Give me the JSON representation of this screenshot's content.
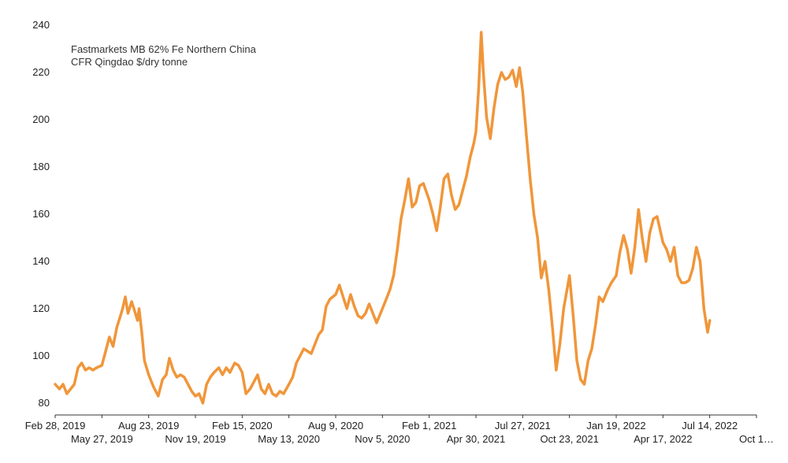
{
  "chart_data": {
    "type": "line",
    "title": "",
    "xlabel": "",
    "ylabel": "",
    "annotation": [
      "Fastmarkets MB 62% Fe Northern China",
      "CFR Qingdao $/dry tonne"
    ],
    "ylim": [
      80,
      240
    ],
    "yticks": [
      80,
      100,
      120,
      140,
      160,
      180,
      200,
      220,
      240
    ],
    "grid": false,
    "color": "#F0963A",
    "xtick_labels": [
      {
        "label": "Feb 28, 2019",
        "date": "2019-02-28",
        "row": 1
      },
      {
        "label": "May 27, 2019",
        "date": "2019-05-27",
        "row": 2
      },
      {
        "label": "Aug 23, 2019",
        "date": "2019-08-23",
        "row": 1
      },
      {
        "label": "Nov 19, 2019",
        "date": "2019-11-19",
        "row": 2
      },
      {
        "label": "Feb 15, 2020",
        "date": "2020-02-15",
        "row": 1
      },
      {
        "label": "May 13, 2020",
        "date": "2020-05-13",
        "row": 2
      },
      {
        "label": "Aug 9, 2020",
        "date": "2020-08-09",
        "row": 1
      },
      {
        "label": "Nov 5, 2020",
        "date": "2020-11-05",
        "row": 2
      },
      {
        "label": "Feb 1, 2021",
        "date": "2021-02-01",
        "row": 1
      },
      {
        "label": "Apr 30, 2021",
        "date": "2021-04-30",
        "row": 2
      },
      {
        "label": "Jul 27, 2021",
        "date": "2021-07-27",
        "row": 1
      },
      {
        "label": "Oct 23, 2021",
        "date": "2021-10-23",
        "row": 2
      },
      {
        "label": "Jan 19, 2022",
        "date": "2022-01-19",
        "row": 1
      },
      {
        "label": "Apr 17, 2022",
        "date": "2022-04-17",
        "row": 2
      },
      {
        "label": "Jul 14, 2022",
        "date": "2022-07-14",
        "row": 1
      },
      {
        "label": "Oct 1…",
        "date": "2022-10-10",
        "row": 2
      }
    ],
    "series": [
      {
        "points": [
          [
            "2019-02-28",
            88
          ],
          [
            "2019-03-08",
            86
          ],
          [
            "2019-03-15",
            88
          ],
          [
            "2019-03-22",
            84
          ],
          [
            "2019-03-29",
            86
          ],
          [
            "2019-04-05",
            88
          ],
          [
            "2019-04-12",
            95
          ],
          [
            "2019-04-19",
            97
          ],
          [
            "2019-04-26",
            94
          ],
          [
            "2019-05-03",
            95
          ],
          [
            "2019-05-10",
            94
          ],
          [
            "2019-05-17",
            95
          ],
          [
            "2019-05-27",
            96
          ],
          [
            "2019-06-03",
            102
          ],
          [
            "2019-06-10",
            108
          ],
          [
            "2019-06-17",
            104
          ],
          [
            "2019-06-24",
            112
          ],
          [
            "2019-07-01",
            117
          ],
          [
            "2019-07-05",
            120
          ],
          [
            "2019-07-10",
            125
          ],
          [
            "2019-07-15",
            118
          ],
          [
            "2019-07-22",
            123
          ],
          [
            "2019-07-29",
            118
          ],
          [
            "2019-08-02",
            115
          ],
          [
            "2019-08-05",
            120
          ],
          [
            "2019-08-10",
            110
          ],
          [
            "2019-08-15",
            98
          ],
          [
            "2019-08-23",
            92
          ],
          [
            "2019-09-01",
            87
          ],
          [
            "2019-09-10",
            83
          ],
          [
            "2019-09-18",
            90
          ],
          [
            "2019-09-25",
            92
          ],
          [
            "2019-10-01",
            99
          ],
          [
            "2019-10-08",
            94
          ],
          [
            "2019-10-15",
            91
          ],
          [
            "2019-10-22",
            92
          ],
          [
            "2019-10-29",
            91
          ],
          [
            "2019-11-05",
            88
          ],
          [
            "2019-11-12",
            85
          ],
          [
            "2019-11-19",
            83
          ],
          [
            "2019-11-26",
            84
          ],
          [
            "2019-12-03",
            80
          ],
          [
            "2019-12-10",
            88
          ],
          [
            "2019-12-17",
            91
          ],
          [
            "2019-12-24",
            93
          ],
          [
            "2020-01-02",
            95
          ],
          [
            "2020-01-09",
            92
          ],
          [
            "2020-01-16",
            95
          ],
          [
            "2020-01-23",
            93
          ],
          [
            "2020-02-01",
            97
          ],
          [
            "2020-02-08",
            96
          ],
          [
            "2020-02-15",
            93
          ],
          [
            "2020-02-22",
            84
          ],
          [
            "2020-03-01",
            86
          ],
          [
            "2020-03-08",
            89
          ],
          [
            "2020-03-15",
            92
          ],
          [
            "2020-03-22",
            86
          ],
          [
            "2020-03-29",
            84
          ],
          [
            "2020-04-05",
            88
          ],
          [
            "2020-04-12",
            84
          ],
          [
            "2020-04-19",
            83
          ],
          [
            "2020-04-26",
            85
          ],
          [
            "2020-05-03",
            84
          ],
          [
            "2020-05-13",
            88
          ],
          [
            "2020-05-20",
            91
          ],
          [
            "2020-05-27",
            97
          ],
          [
            "2020-06-03",
            100
          ],
          [
            "2020-06-10",
            103
          ],
          [
            "2020-06-17",
            102
          ],
          [
            "2020-06-24",
            101
          ],
          [
            "2020-07-01",
            105
          ],
          [
            "2020-07-08",
            109
          ],
          [
            "2020-07-15",
            111
          ],
          [
            "2020-07-22",
            121
          ],
          [
            "2020-07-29",
            124
          ],
          [
            "2020-08-09",
            126
          ],
          [
            "2020-08-16",
            130
          ],
          [
            "2020-08-23",
            125
          ],
          [
            "2020-08-30",
            120
          ],
          [
            "2020-09-06",
            126
          ],
          [
            "2020-09-13",
            121
          ],
          [
            "2020-09-20",
            117
          ],
          [
            "2020-09-27",
            116
          ],
          [
            "2020-10-04",
            118
          ],
          [
            "2020-10-11",
            122
          ],
          [
            "2020-10-18",
            118
          ],
          [
            "2020-10-25",
            114
          ],
          [
            "2020-11-05",
            120
          ],
          [
            "2020-11-12",
            124
          ],
          [
            "2020-11-19",
            128
          ],
          [
            "2020-11-26",
            134
          ],
          [
            "2020-12-03",
            145
          ],
          [
            "2020-12-10",
            158
          ],
          [
            "2020-12-17",
            166
          ],
          [
            "2020-12-24",
            175
          ],
          [
            "2020-12-31",
            163
          ],
          [
            "2021-01-07",
            165
          ],
          [
            "2021-01-14",
            172
          ],
          [
            "2021-01-21",
            173
          ],
          [
            "2021-02-01",
            166
          ],
          [
            "2021-02-08",
            160
          ],
          [
            "2021-02-15",
            153
          ],
          [
            "2021-02-22",
            163
          ],
          [
            "2021-03-01",
            175
          ],
          [
            "2021-03-08",
            177
          ],
          [
            "2021-03-15",
            168
          ],
          [
            "2021-03-22",
            162
          ],
          [
            "2021-03-29",
            164
          ],
          [
            "2021-04-05",
            170
          ],
          [
            "2021-04-12",
            176
          ],
          [
            "2021-04-19",
            184
          ],
          [
            "2021-04-26",
            190
          ],
          [
            "2021-04-30",
            195
          ],
          [
            "2021-05-05",
            213
          ],
          [
            "2021-05-10",
            237
          ],
          [
            "2021-05-14",
            220
          ],
          [
            "2021-05-20",
            201
          ],
          [
            "2021-05-27",
            192
          ],
          [
            "2021-06-03",
            205
          ],
          [
            "2021-06-10",
            215
          ],
          [
            "2021-06-17",
            220
          ],
          [
            "2021-06-24",
            217
          ],
          [
            "2021-07-01",
            218
          ],
          [
            "2021-07-08",
            221
          ],
          [
            "2021-07-15",
            214
          ],
          [
            "2021-07-21",
            222
          ],
          [
            "2021-07-27",
            212
          ],
          [
            "2021-08-03",
            193
          ],
          [
            "2021-08-10",
            175
          ],
          [
            "2021-08-17",
            160
          ],
          [
            "2021-08-24",
            150
          ],
          [
            "2021-08-31",
            133
          ],
          [
            "2021-09-07",
            140
          ],
          [
            "2021-09-14",
            128
          ],
          [
            "2021-09-21",
            112
          ],
          [
            "2021-09-28",
            94
          ],
          [
            "2021-10-05",
            105
          ],
          [
            "2021-10-12",
            120
          ],
          [
            "2021-10-23",
            134
          ],
          [
            "2021-10-30",
            117
          ],
          [
            "2021-11-06",
            98
          ],
          [
            "2021-11-13",
            90
          ],
          [
            "2021-11-20",
            88
          ],
          [
            "2021-11-27",
            98
          ],
          [
            "2021-12-04",
            103
          ],
          [
            "2021-12-11",
            113
          ],
          [
            "2021-12-18",
            125
          ],
          [
            "2021-12-25",
            123
          ],
          [
            "2022-01-03",
            128
          ],
          [
            "2022-01-10",
            131
          ],
          [
            "2022-01-19",
            134
          ],
          [
            "2022-01-26",
            144
          ],
          [
            "2022-02-02",
            151
          ],
          [
            "2022-02-09",
            145
          ],
          [
            "2022-02-16",
            135
          ],
          [
            "2022-02-23",
            146
          ],
          [
            "2022-03-02",
            162
          ],
          [
            "2022-03-09",
            150
          ],
          [
            "2022-03-16",
            140
          ],
          [
            "2022-03-23",
            152
          ],
          [
            "2022-03-30",
            158
          ],
          [
            "2022-04-06",
            159
          ],
          [
            "2022-04-13",
            152
          ],
          [
            "2022-04-17",
            148
          ],
          [
            "2022-04-24",
            145
          ],
          [
            "2022-05-01",
            140
          ],
          [
            "2022-05-08",
            146
          ],
          [
            "2022-05-15",
            134
          ],
          [
            "2022-05-22",
            131
          ],
          [
            "2022-05-29",
            131
          ],
          [
            "2022-06-05",
            132
          ],
          [
            "2022-06-12",
            137
          ],
          [
            "2022-06-19",
            146
          ],
          [
            "2022-06-26",
            140
          ],
          [
            "2022-07-03",
            120
          ],
          [
            "2022-07-10",
            110
          ],
          [
            "2022-07-14",
            115
          ]
        ]
      }
    ]
  }
}
